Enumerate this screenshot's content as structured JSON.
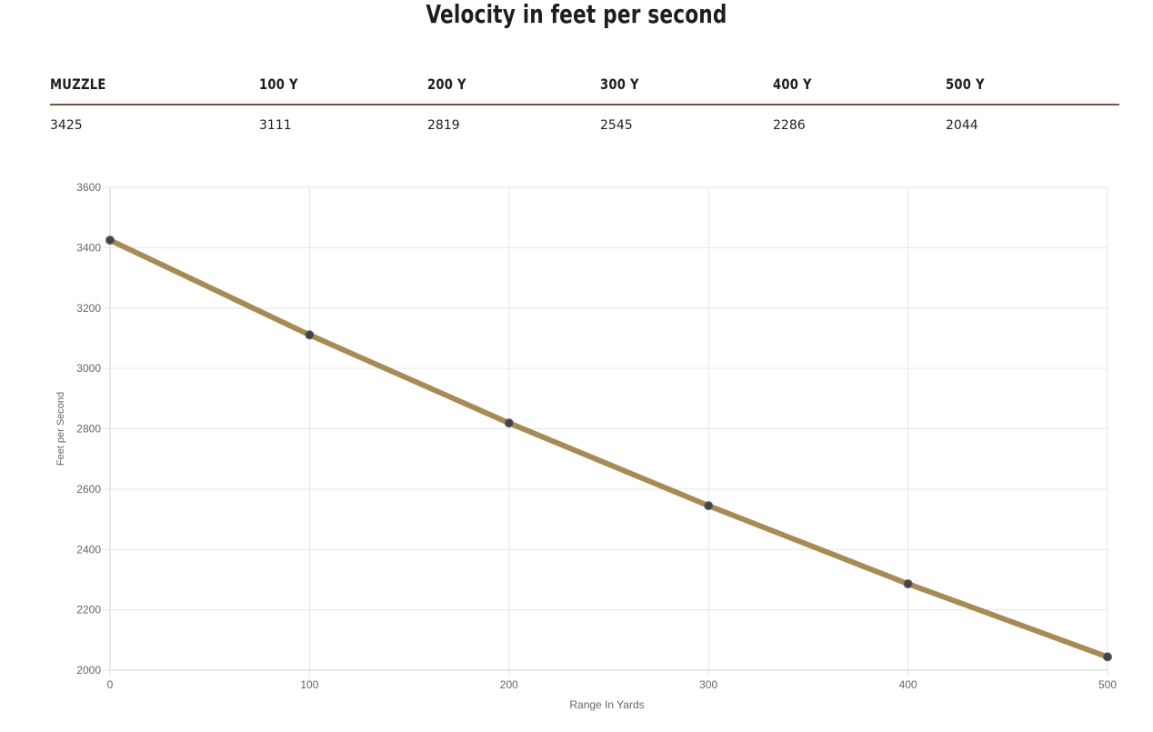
{
  "page_title": "Velocity in feet per second",
  "table": {
    "headers": [
      "MUZZLE",
      "100 Y",
      "200 Y",
      "300 Y",
      "400 Y",
      "500 Y"
    ],
    "values": [
      "3425",
      "3111",
      "2819",
      "2545",
      "2286",
      "2044"
    ]
  },
  "chart_data": {
    "type": "line",
    "title": "",
    "xlabel": "Range In Yards",
    "ylabel": "Feet per Second",
    "x": [
      0,
      100,
      200,
      300,
      400,
      500
    ],
    "series": [
      {
        "values": [
          3425,
          3111,
          2819,
          2545,
          2286,
          2044
        ]
      }
    ],
    "xlim": [
      0,
      500
    ],
    "ylim": [
      2000,
      3600
    ],
    "xticks": [
      0,
      100,
      200,
      300,
      400,
      500
    ],
    "yticks": [
      2000,
      2200,
      2400,
      2600,
      2800,
      3000,
      3200,
      3400,
      3600
    ],
    "grid": true,
    "legend": "none",
    "colors": {
      "line": "#a68b55",
      "point": "#444444",
      "grid": "#e6e6e6"
    }
  }
}
